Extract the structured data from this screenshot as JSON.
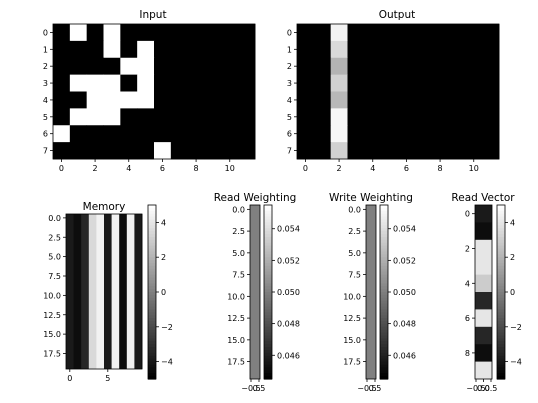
{
  "chart_data": [
    {
      "type": "heatmap",
      "title": "Input",
      "rows": 8,
      "cols": 12,
      "xticks": [
        0,
        2,
        4,
        6,
        8,
        10
      ],
      "yticks": [
        0,
        1,
        2,
        3,
        4,
        5,
        6,
        7
      ],
      "values": [
        [
          0,
          1,
          0,
          1,
          0,
          0,
          0,
          0,
          0,
          0,
          0,
          0
        ],
        [
          0,
          0,
          0,
          1,
          0,
          1,
          0,
          0,
          0,
          0,
          0,
          0
        ],
        [
          0,
          0,
          0,
          0,
          1,
          1,
          0,
          0,
          0,
          0,
          0,
          0
        ],
        [
          0,
          1,
          1,
          1,
          0,
          1,
          0,
          0,
          0,
          0,
          0,
          0
        ],
        [
          0,
          0,
          1,
          1,
          1,
          1,
          0,
          0,
          0,
          0,
          0,
          0
        ],
        [
          0,
          1,
          1,
          1,
          0,
          0,
          0,
          0,
          0,
          0,
          0,
          0
        ],
        [
          1,
          0,
          0,
          0,
          0,
          0,
          0,
          0,
          0,
          0,
          0,
          0
        ],
        [
          0,
          0,
          0,
          0,
          0,
          0,
          1,
          0,
          0,
          0,
          0,
          0
        ]
      ]
    },
    {
      "type": "heatmap",
      "title": "Output",
      "rows": 8,
      "cols": 12,
      "xticks": [
        0,
        2,
        4,
        6,
        8,
        10
      ],
      "yticks": [
        0,
        1,
        2,
        3,
        4,
        5,
        6,
        7
      ],
      "values": [
        [
          0,
          0,
          0.95,
          0,
          0,
          0,
          0,
          0,
          0,
          0,
          0,
          0
        ],
        [
          0,
          0,
          0.85,
          0,
          0,
          0,
          0,
          0,
          0,
          0,
          0,
          0
        ],
        [
          0,
          0,
          0.7,
          0,
          0,
          0,
          0,
          0,
          0,
          0,
          0,
          0
        ],
        [
          0,
          0,
          0.82,
          0,
          0,
          0,
          0,
          0,
          0,
          0,
          0,
          0
        ],
        [
          0,
          0,
          0.72,
          0,
          0,
          0,
          0,
          0,
          0,
          0,
          0,
          0
        ],
        [
          0,
          0,
          0.97,
          0,
          0,
          0,
          0,
          0,
          0,
          0,
          0,
          0
        ],
        [
          0,
          0,
          0.97,
          0,
          0,
          0,
          0,
          0,
          0,
          0,
          0,
          0
        ],
        [
          0,
          0,
          0.82,
          0,
          0,
          0,
          0,
          0,
          0,
          0,
          0,
          0
        ]
      ]
    },
    {
      "type": "heatmap",
      "title": "Memory",
      "rows": 20,
      "cols": 10,
      "xticks": [
        0,
        5
      ],
      "yticks": [
        "0.0",
        "2.5",
        "5.0",
        "7.5",
        "10.0",
        "12.5",
        "15.0",
        "17.5"
      ],
      "ytick_values": [
        0,
        2.5,
        5,
        7.5,
        10,
        12.5,
        15,
        17.5
      ],
      "column_values": [
        -4,
        -4.5,
        -3.5,
        3.5,
        4.5,
        -4,
        4.5,
        -4.5,
        4.5,
        -4
      ],
      "colorbar": {
        "vmin": -5,
        "vmax": 5,
        "ticks": [
          "4",
          "2",
          "0",
          "−2",
          "−4"
        ],
        "tick_values": [
          4,
          2,
          0,
          -2,
          -4
        ]
      }
    },
    {
      "type": "heatmap",
      "title": "Read Weighting",
      "rows": 20,
      "cols": 1,
      "xticks": [
        "−0.5",
        "0.5"
      ],
      "yticks": [
        "0.0",
        "2.5",
        "5.0",
        "7.5",
        "10.0",
        "12.5",
        "15.0",
        "17.5"
      ],
      "ytick_values": [
        0,
        2.5,
        5,
        7.5,
        10,
        12.5,
        15,
        17.5
      ],
      "value": 0.05,
      "colorbar": {
        "vmin": 0.0445,
        "vmax": 0.0555,
        "ticks": [
          "0.054",
          "0.052",
          "0.050",
          "0.048",
          "0.046"
        ],
        "tick_values": [
          0.054,
          0.052,
          0.05,
          0.048,
          0.046
        ]
      }
    },
    {
      "type": "heatmap",
      "title": "Write Weighting",
      "rows": 20,
      "cols": 1,
      "xticks": [
        "−0.5",
        "0.5"
      ],
      "yticks": [
        "0.0",
        "2.5",
        "5.0",
        "7.5",
        "10.0",
        "12.5",
        "15.0",
        "17.5"
      ],
      "ytick_values": [
        0,
        2.5,
        5,
        7.5,
        10,
        12.5,
        15,
        17.5
      ],
      "value": 0.05,
      "colorbar": {
        "vmin": 0.0445,
        "vmax": 0.0555,
        "ticks": [
          "0.054",
          "0.052",
          "0.050",
          "0.048",
          "0.046"
        ],
        "tick_values": [
          0.054,
          0.052,
          0.05,
          0.048,
          0.046
        ]
      }
    },
    {
      "type": "heatmap",
      "title": "Read Vector",
      "rows": 10,
      "cols": 1,
      "xticks": [
        "−0.5",
        "0.0",
        "0.5"
      ],
      "yticks": [
        0,
        2,
        4,
        6,
        8
      ],
      "values": [
        -4,
        -4.5,
        4,
        4,
        3,
        -3.5,
        4,
        -3.5,
        -4.5,
        4
      ],
      "colorbar": {
        "vmin": -5,
        "vmax": 5,
        "ticks": [
          "4",
          "2",
          "0",
          "−2",
          "−4"
        ],
        "tick_values": [
          4,
          2,
          0,
          -2,
          -4
        ]
      }
    }
  ]
}
